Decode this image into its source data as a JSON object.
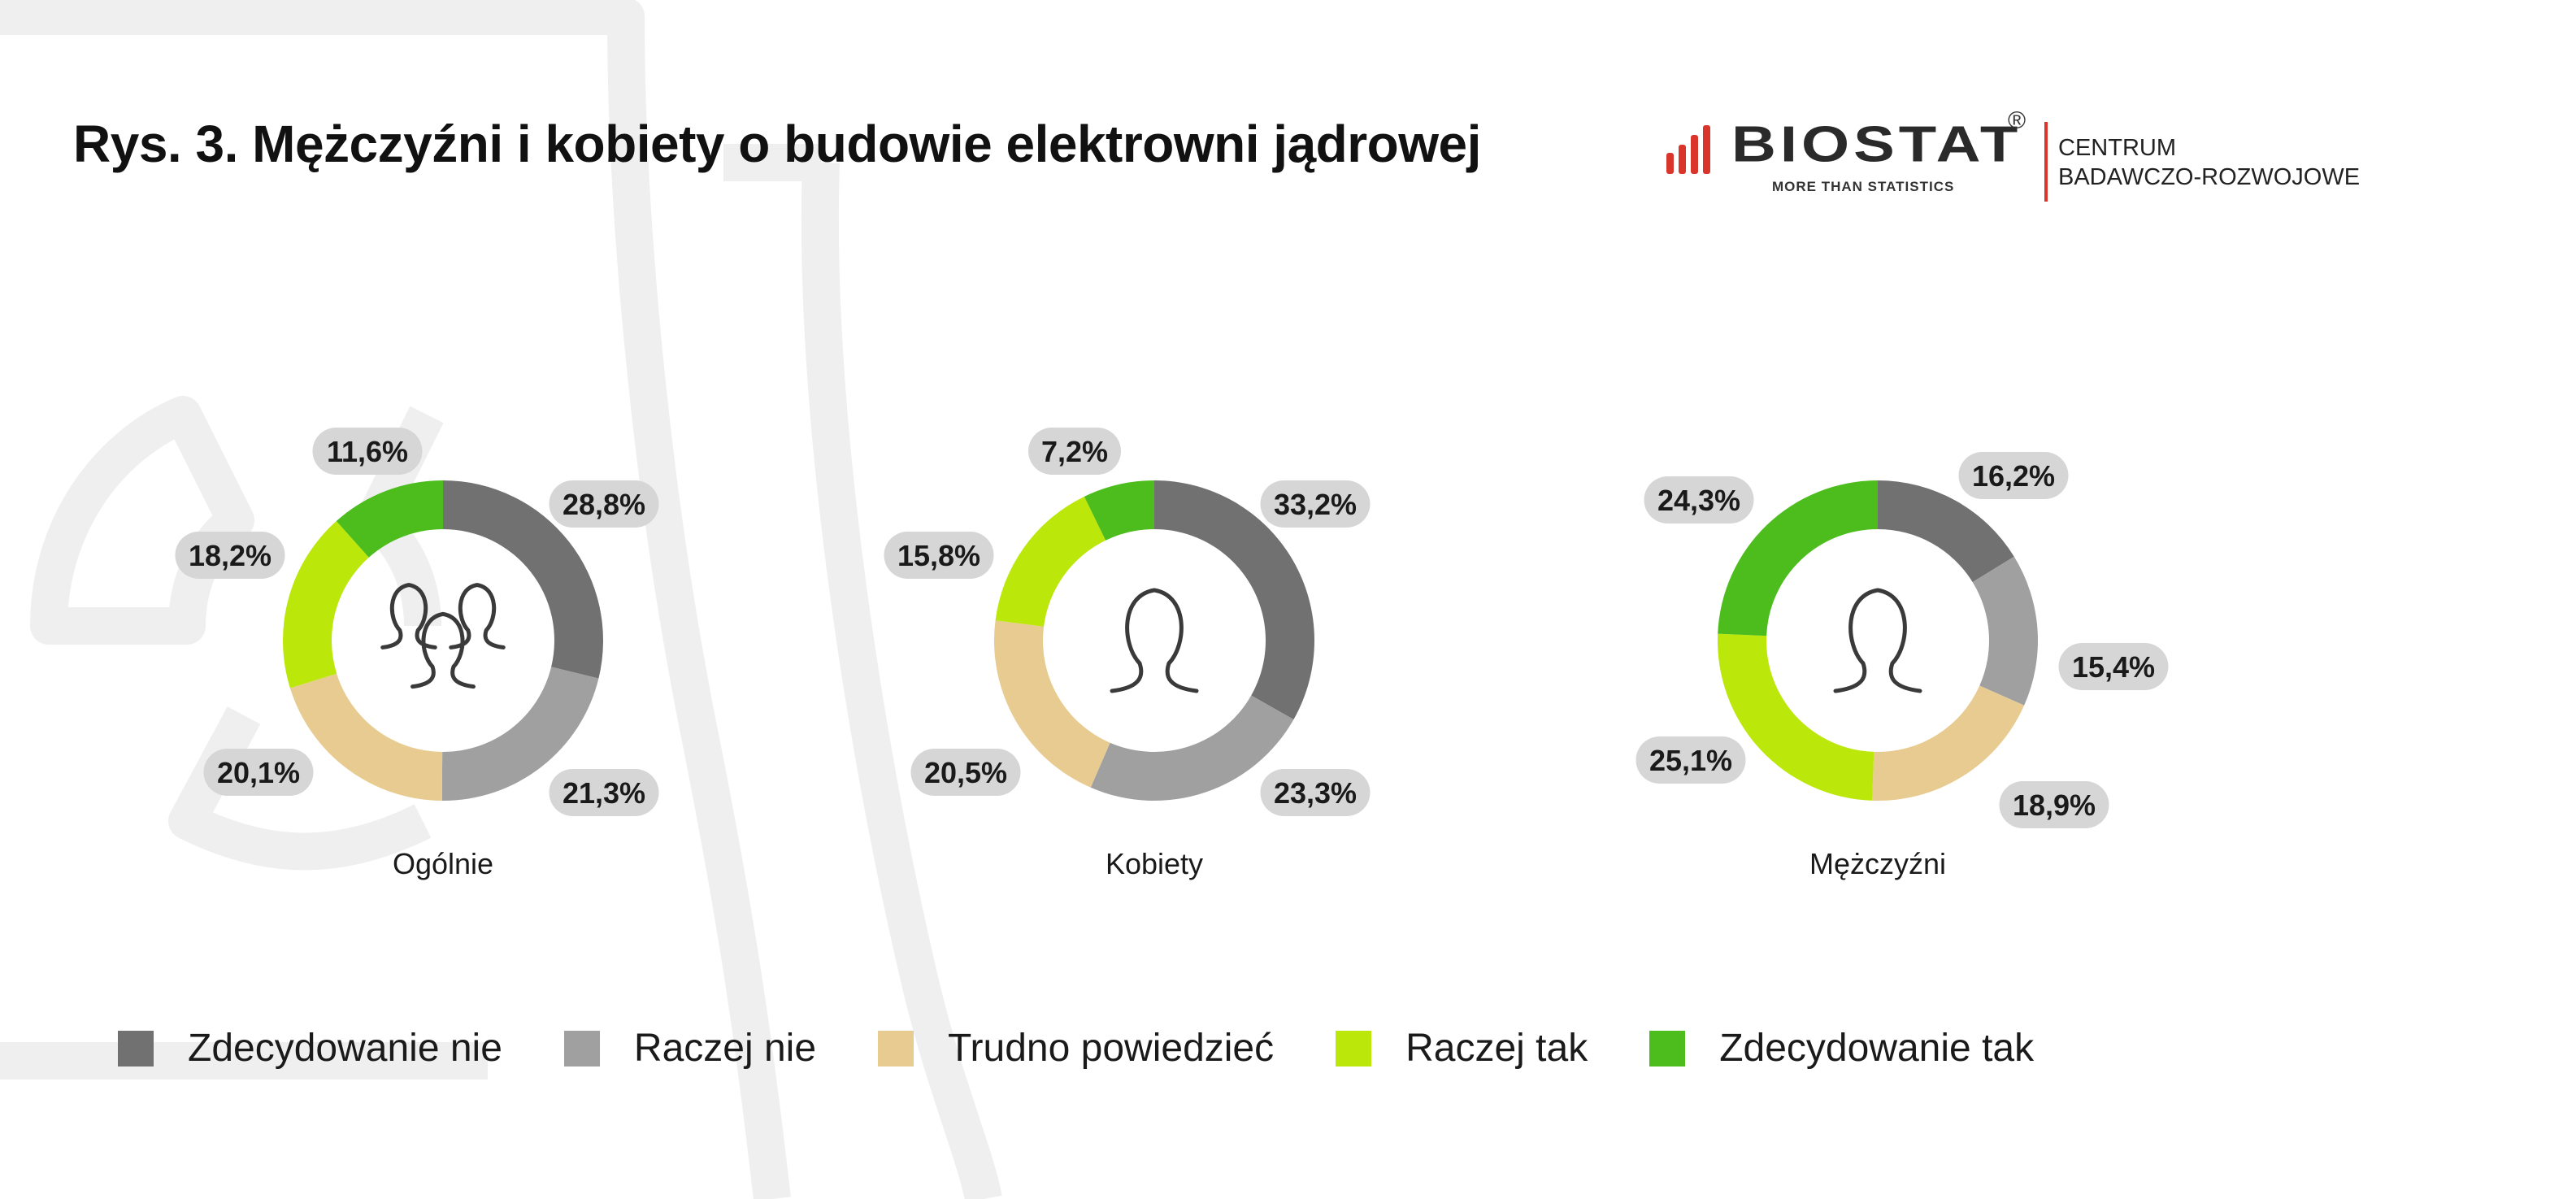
{
  "title": "Rys.  3. Mężczyźni i kobiety o budowie elektrowni jądrowej",
  "logo": {
    "brand": "BIOSTAT",
    "registered": "®",
    "tagline": "MORE THAN STATISTICS",
    "center_line1": "CENTRUM",
    "center_line2": "BADAWCZO-ROZWOJOWE",
    "accent_color": "#d9352b"
  },
  "legend": [
    {
      "label": "Zdecydowanie nie",
      "color": "#717171"
    },
    {
      "label": "Raczej nie",
      "color": "#a0a0a0"
    },
    {
      "label": "Trudno powiedzieć",
      "color": "#e8cb90"
    },
    {
      "label": "Raczej tak",
      "color": "#bce70b"
    },
    {
      "label": "Zdecydowanie tak",
      "color": "#4cbd1d"
    }
  ],
  "chart_data": [
    {
      "type": "pie",
      "subtype": "donut",
      "caption": "Ogólnie",
      "icon": "group-people-icon",
      "categories": [
        "Zdecydowanie nie",
        "Raczej nie",
        "Trudno powiedzieć",
        "Raczej tak",
        "Zdecydowanie tak"
      ],
      "values": [
        28.8,
        21.3,
        20.1,
        18.2,
        11.6
      ],
      "labels": [
        "28,8%",
        "21,3%",
        "20,1%",
        "18,2%",
        "11,6%"
      ]
    },
    {
      "type": "pie",
      "subtype": "donut",
      "caption": "Kobiety",
      "icon": "woman-silhouette-icon",
      "categories": [
        "Zdecydowanie nie",
        "Raczej nie",
        "Trudno powiedzieć",
        "Raczej tak",
        "Zdecydowanie tak"
      ],
      "values": [
        33.2,
        23.3,
        20.5,
        15.8,
        7.2
      ],
      "labels": [
        "33,2%",
        "23,3%",
        "20,5%",
        "15,8%",
        "7,2%"
      ]
    },
    {
      "type": "pie",
      "subtype": "donut",
      "caption": "Mężczyźni",
      "icon": "man-silhouette-icon",
      "categories": [
        "Zdecydowanie nie",
        "Raczej nie",
        "Trudno powiedzieć",
        "Raczej tak",
        "Zdecydowanie tak"
      ],
      "values": [
        16.2,
        15.4,
        18.9,
        25.1,
        24.3
      ],
      "labels": [
        "16,2%",
        "15,4%",
        "18,9%",
        "25,1%",
        "24,3%"
      ]
    }
  ]
}
